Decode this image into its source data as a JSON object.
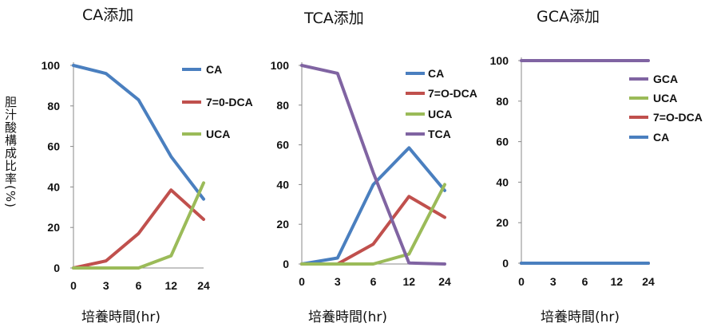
{
  "ylabel": "胆汁酸構成比率(%)",
  "xlabel": "培養時間(hr)",
  "chart_data": [
    {
      "type": "line",
      "title": "CA添加",
      "categories": [
        "0",
        "3",
        "6",
        "12",
        "24"
      ],
      "ylim": [
        0,
        100
      ],
      "yticks": [
        "0",
        "20",
        "40",
        "60",
        "80",
        "100"
      ],
      "grid": false,
      "series": [
        {
          "name": "CA",
          "color": "#4a7fbf",
          "values": [
            100,
            96,
            83,
            55,
            34
          ]
        },
        {
          "name": "7=0-DCA",
          "color": "#c0504d",
          "values": [
            0,
            3.5,
            17,
            38.5,
            24
          ]
        },
        {
          "name": "UCA",
          "color": "#9bbb59",
          "values": [
            0,
            0,
            0,
            6,
            42
          ]
        }
      ]
    },
    {
      "type": "line",
      "title": "TCA添加",
      "categories": [
        "0",
        "3",
        "6",
        "12",
        "24"
      ],
      "ylim": [
        0,
        100
      ],
      "yticks": [
        "0",
        "20",
        "40",
        "60",
        "80",
        "100"
      ],
      "grid": false,
      "series": [
        {
          "name": "CA",
          "color": "#4a7fbf",
          "values": [
            0,
            3,
            40,
            58.5,
            37
          ]
        },
        {
          "name": "7=O-DCA",
          "color": "#c0504d",
          "values": [
            0,
            0,
            10,
            34,
            23.5
          ]
        },
        {
          "name": "UCA",
          "color": "#9bbb59",
          "values": [
            0,
            0,
            0,
            5,
            40
          ]
        },
        {
          "name": "TCA",
          "color": "#8064a2",
          "values": [
            100,
            96,
            46,
            0.5,
            0
          ]
        }
      ]
    },
    {
      "type": "line",
      "title": "GCA添加",
      "categories": [
        "0",
        "3",
        "6",
        "12",
        "24"
      ],
      "ylim": [
        0,
        100
      ],
      "yticks": [
        "0",
        "20",
        "40",
        "60",
        "80",
        "100"
      ],
      "grid": false,
      "series": [
        {
          "name": "GCA",
          "color": "#8064a2",
          "values": [
            100,
            100,
            100,
            100,
            100
          ]
        },
        {
          "name": "UCA",
          "color": "#9bbb59",
          "values": [
            0,
            0,
            0,
            0,
            0
          ]
        },
        {
          "name": "7=O-DCA",
          "color": "#c0504d",
          "values": [
            0,
            0,
            0,
            0,
            0
          ]
        },
        {
          "name": "CA",
          "color": "#4a7fbf",
          "values": [
            0,
            0,
            0,
            0,
            0
          ]
        }
      ]
    }
  ]
}
